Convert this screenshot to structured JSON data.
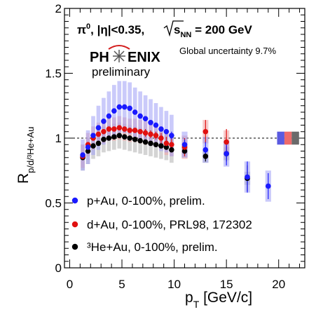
{
  "chart_data": {
    "type": "scatter",
    "title_main": "π",
    "title_sup": "0",
    "title_rest": ", |η|<0.35,",
    "title_sqrt_s": "s",
    "title_sub_NN": "NN",
    "title_energy": " = 200 GeV",
    "logo_left": "PH",
    "logo_right": "ENIX",
    "logo_sub": "preliminary",
    "global_uncertainty": "Global uncertainty 9.7%",
    "xlabel_main": "p",
    "xlabel_sub": "T",
    "xlabel_unit": " [GeV/c]",
    "ylabel_main": "R",
    "ylabel_sub": "p/d/³He+Au",
    "xlim": [
      -0.5,
      22.5
    ],
    "ylim": [
      0,
      2
    ],
    "x_ticks": [
      "0",
      "5",
      "10",
      "15",
      "20"
    ],
    "y_ticks": [
      "0",
      "0.5",
      "1",
      "1.5",
      "2"
    ],
    "reference_line": 1,
    "legend_position": "bottom-left",
    "series": [
      {
        "name": "p+Au, 0-100%, prelim.",
        "color": "#1a1aff",
        "box_color": "#9e9ef5",
        "x": [
          1.25,
          1.75,
          2.25,
          2.75,
          3.25,
          3.75,
          4.25,
          4.75,
          5.25,
          5.75,
          6.25,
          6.75,
          7.25,
          7.75,
          8.25,
          8.75,
          9.25,
          9.75,
          11,
          13,
          15,
          17,
          19
        ],
        "y": [
          0.87,
          0.93,
          1.02,
          1.08,
          1.13,
          1.17,
          1.21,
          1.24,
          1.24,
          1.23,
          1.2,
          1.17,
          1.15,
          1.12,
          1.1,
          1.07,
          1.05,
          1.02,
          0.95,
          0.91,
          0.88,
          0.7,
          0.63
        ],
        "stat": [
          0.02,
          0.02,
          0.02,
          0.02,
          0.02,
          0.02,
          0.02,
          0.02,
          0.02,
          0.02,
          0.02,
          0.02,
          0.02,
          0.02,
          0.02,
          0.02,
          0.02,
          0.03,
          0.04,
          0.06,
          0.09,
          0.12,
          0.1
        ],
        "sys": [
          0.12,
          0.13,
          0.15,
          0.17,
          0.18,
          0.19,
          0.2,
          0.2,
          0.2,
          0.2,
          0.19,
          0.19,
          0.18,
          0.18,
          0.17,
          0.17,
          0.16,
          0.16,
          0.1,
          0.1,
          0.1,
          0.12,
          0.12
        ]
      },
      {
        "name": "d+Au, 0-100%, PRL98, 172302",
        "color": "#e01010",
        "box_color": "#f0a0a0",
        "x": [
          1.25,
          1.75,
          2.25,
          2.75,
          3.25,
          3.75,
          4.25,
          4.75,
          5.25,
          5.75,
          6.25,
          6.75,
          7.25,
          7.75,
          8.25,
          8.75,
          9.25,
          9.75,
          11,
          13,
          15
        ],
        "y": [
          0.86,
          0.95,
          1.0,
          1.03,
          1.05,
          1.07,
          1.07,
          1.08,
          1.07,
          1.06,
          1.06,
          1.05,
          1.04,
          1.03,
          1.02,
          1.0,
          0.96,
          0.95,
          0.93,
          1.05,
          0.97
        ],
        "stat": [
          0.02,
          0.02,
          0.02,
          0.02,
          0.02,
          0.02,
          0.02,
          0.02,
          0.02,
          0.02,
          0.02,
          0.02,
          0.03,
          0.03,
          0.03,
          0.04,
          0.05,
          0.06,
          0.07,
          0.09,
          0.1
        ],
        "sys": [
          0.09,
          0.09,
          0.09,
          0.09,
          0.09,
          0.09,
          0.09,
          0.09,
          0.09,
          0.09,
          0.09,
          0.09,
          0.09,
          0.09,
          0.09,
          0.09,
          0.09,
          0.09,
          0.09,
          0.09,
          0.09
        ]
      },
      {
        "name": "³He+Au, 0-100%, prelim.",
        "color": "#000000",
        "box_color": "#b0b0b0",
        "x": [
          1.25,
          1.75,
          2.25,
          2.75,
          3.25,
          3.75,
          4.25,
          4.75,
          5.25,
          5.75,
          6.25,
          6.75,
          7.25,
          7.75,
          8.25,
          8.75,
          9.25,
          9.75,
          11,
          13,
          15,
          17
        ],
        "y": [
          0.85,
          0.9,
          0.94,
          0.96,
          0.99,
          1.0,
          1.01,
          1.02,
          1.01,
          1.0,
          0.99,
          0.98,
          0.97,
          0.96,
          0.95,
          0.94,
          0.93,
          0.91,
          0.9,
          0.86,
          0.88,
          0.69
        ],
        "stat": [
          0.02,
          0.02,
          0.02,
          0.02,
          0.02,
          0.02,
          0.02,
          0.02,
          0.02,
          0.02,
          0.02,
          0.02,
          0.02,
          0.02,
          0.02,
          0.02,
          0.02,
          0.02,
          0.03,
          0.04,
          0.06,
          0.1
        ],
        "sys": [
          0.1,
          0.1,
          0.1,
          0.1,
          0.1,
          0.1,
          0.1,
          0.1,
          0.1,
          0.1,
          0.1,
          0.1,
          0.1,
          0.1,
          0.1,
          0.1,
          0.1,
          0.1,
          0.05,
          0.05,
          0.05,
          0.05
        ]
      }
    ],
    "global_boxes": [
      {
        "color": "#5a5ae0",
        "half_height": 0.05
      },
      {
        "color": "#ee6a6a",
        "half_height": 0.05
      },
      {
        "color": "#6a6a6a",
        "half_height": 0.05
      }
    ]
  }
}
